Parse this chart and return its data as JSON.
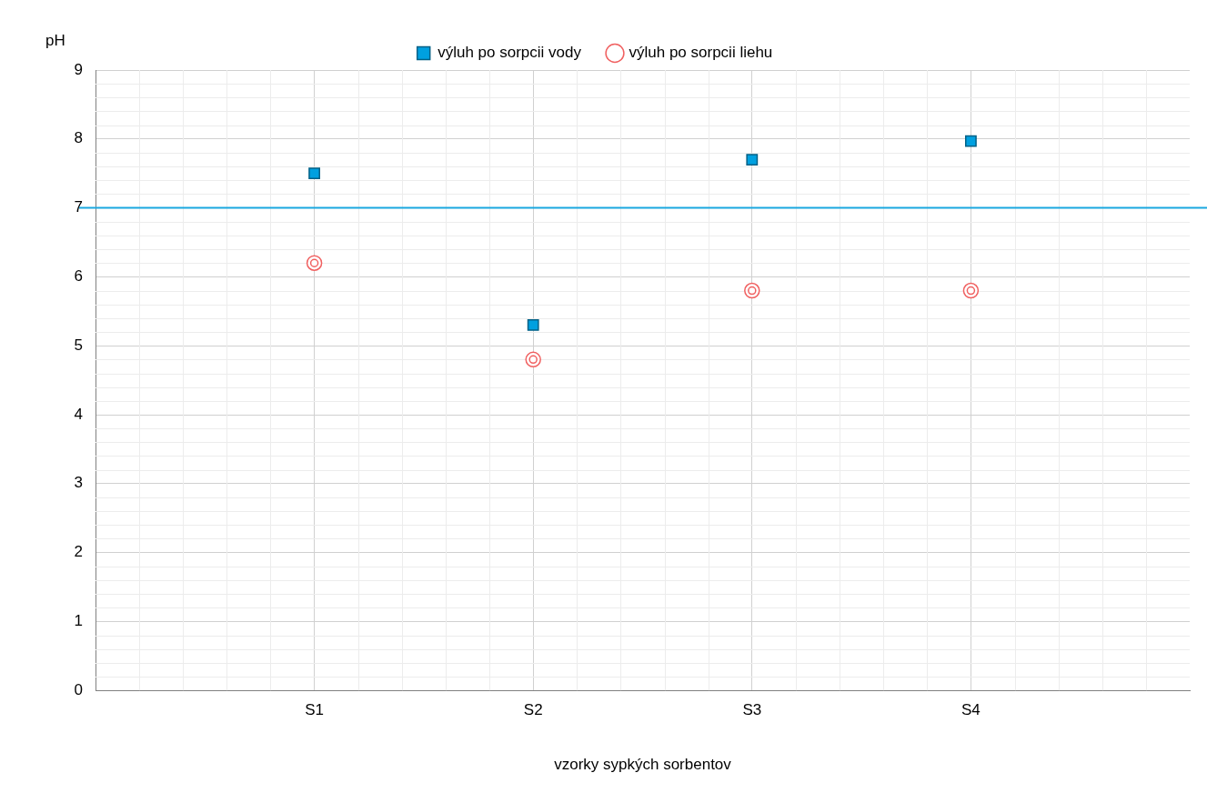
{
  "chart_data": {
    "type": "scatter",
    "xlabel": "vzorky sypkých sorbentov",
    "ylabel": "pH",
    "categories": [
      "S1",
      "S2",
      "S3",
      "S4"
    ],
    "series": [
      {
        "name": "výluh po sorpcii vody",
        "color": "#00a0e0",
        "values": [
          7.5,
          5.3,
          7.7,
          7.97
        ],
        "marker": "square"
      },
      {
        "name": "výluh po sorpcii liehu",
        "color": "#f06060",
        "values": [
          6.2,
          4.8,
          5.8,
          5.8
        ],
        "marker": "circle"
      }
    ],
    "ylim": [
      0,
      9
    ],
    "yticks": [
      0,
      1,
      2,
      3,
      4,
      5,
      6,
      7,
      8,
      9
    ],
    "ref_lines": [
      {
        "axis": "y",
        "value": 7,
        "color": "#1aa7e0"
      }
    ],
    "grid": true,
    "legend": "top"
  }
}
